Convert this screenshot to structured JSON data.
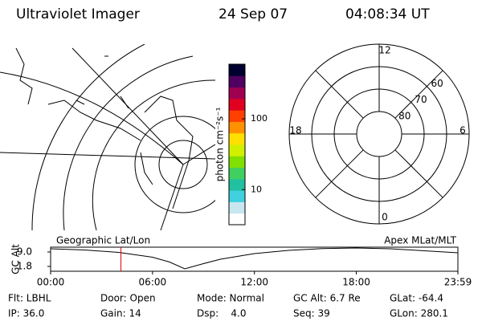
{
  "header": {
    "title": "Ultraviolet Imager",
    "date": "24 Sep 07",
    "time": "04:08:34 UT"
  },
  "chart_data": [
    {
      "type": "line",
      "ylabel": "GC Alt",
      "left_label": "Geographic Lat/Lon",
      "right_label": "Apex MLat/MLT",
      "x": [
        0,
        2,
        4,
        6,
        7,
        7.9,
        9,
        10,
        12,
        14,
        16,
        18,
        20,
        22,
        23.98
      ],
      "series": [
        {
          "color": "#000000",
          "values": [
            10.6,
            10.0,
            8.8,
            6.4,
            4.0,
            0.6,
            3.2,
            5.4,
            8.2,
            9.8,
            10.7,
            11.0,
            10.6,
            9.6,
            8.6
          ]
        }
      ],
      "marker_x": 4.14,
      "marker_color": "#e00000",
      "xlim": [
        0,
        23.98
      ],
      "xticks": [
        {
          "value": 0,
          "label": "00:00"
        },
        {
          "value": 6,
          "label": "06:00"
        },
        {
          "value": 12,
          "label": "12:00"
        },
        {
          "value": 18,
          "label": "18:00"
        },
        {
          "value": 23.98,
          "label": "23:59"
        }
      ],
      "ylim": [
        -0.6,
        11.4
      ],
      "yticks": [
        {
          "value": 9,
          "label": "9.0"
        },
        1.8
      ]
    },
    {
      "type": "colorbar",
      "label": "photon cm⁻²s⁻¹",
      "log_scale": true,
      "lim": [
        3.2,
        590
      ],
      "ticks": [
        10,
        100
      ],
      "colors": [
        "#ffffff",
        "#c8e6f0",
        "#40d0e0",
        "#20c0a0",
        "#40d060",
        "#80e000",
        "#d0f000",
        "#ffe000",
        "#ff9000",
        "#ff4000",
        "#e00020",
        "#a00050",
        "#500060",
        "#000030"
      ]
    },
    {
      "type": "polar",
      "lat_lim": [
        50,
        90
      ],
      "lat_ticks": [
        60,
        70,
        80
      ],
      "mlt_ticks": [
        12,
        18,
        6,
        0
      ]
    }
  ],
  "info": [
    [
      "Flt: LBHL",
      "Door: Open",
      "Mode: Normal",
      "GC Alt: 6.7 Re",
      "GLat: -64.4"
    ],
    [
      "IP: 36.0",
      "Gain: 14",
      "Dsp:    4.0",
      "Seq: 39",
      "GLon: 280.1"
    ]
  ]
}
